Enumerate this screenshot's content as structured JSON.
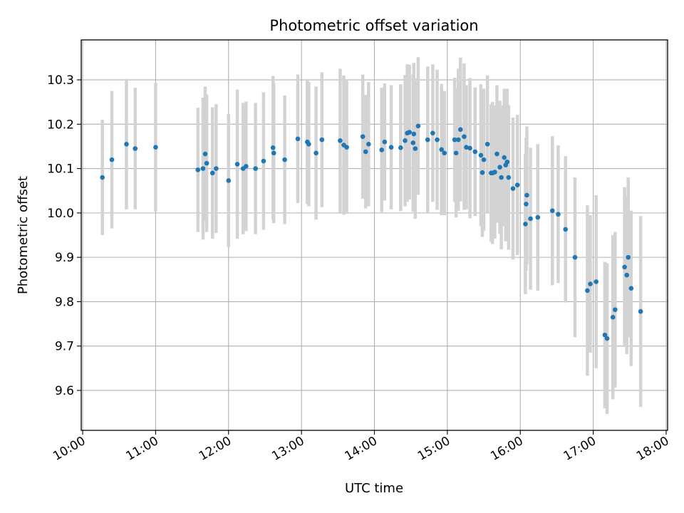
{
  "chart_data": {
    "type": "scatter",
    "title": "Photometric offset variation",
    "xlabel": "UTC time",
    "ylabel": "Photometric offset",
    "x_unit": "hours UTC",
    "xlim": [
      9.98,
      18.02
    ],
    "ylim": [
      9.51,
      10.39
    ],
    "x_ticks": [
      10,
      11,
      12,
      13,
      14,
      15,
      16,
      17,
      18
    ],
    "x_tick_labels": [
      "10:00",
      "11:00",
      "12:00",
      "13:00",
      "14:00",
      "15:00",
      "16:00",
      "17:00",
      "18:00"
    ],
    "y_ticks": [
      9.6,
      9.7,
      9.8,
      9.9,
      10.0,
      10.1,
      10.2,
      10.3
    ],
    "y_tick_labels": [
      "9.6",
      "9.7",
      "9.8",
      "9.9",
      "10.0",
      "10.1",
      "10.2",
      "10.3"
    ],
    "grid": true,
    "colors": {
      "point": "#1f77b4",
      "errorbar": "#d3d3d3",
      "grid": "#b0b0b0"
    },
    "series": [
      {
        "x": [
          10.27,
          10.4,
          10.6,
          10.72,
          11.0,
          11.58,
          11.65,
          11.68,
          11.7,
          11.78,
          11.83,
          12.0,
          12.12,
          12.2,
          12.24,
          12.37,
          12.48,
          12.61,
          12.62,
          12.77,
          12.95,
          13.08,
          13.1,
          13.2,
          13.28,
          13.53,
          13.58,
          13.62,
          13.84,
          13.88,
          13.92,
          14.1,
          14.14,
          14.23,
          14.36,
          14.42,
          14.45,
          14.48,
          14.53,
          14.54,
          14.56,
          14.6,
          14.73,
          14.8,
          14.86,
          14.92,
          14.96,
          15.1,
          15.12,
          15.15,
          15.18,
          15.23,
          15.26,
          15.31,
          15.38,
          15.46,
          15.48,
          15.5,
          15.55,
          15.6,
          15.62,
          15.65,
          15.68,
          15.72,
          15.74,
          15.78,
          15.8,
          15.82,
          15.84,
          15.9,
          15.96,
          16.07,
          16.08,
          16.09,
          16.14,
          16.24,
          16.44,
          16.52,
          16.62,
          16.75,
          16.92,
          16.96,
          17.04,
          17.16,
          17.19,
          17.27,
          17.3,
          17.43,
          17.46,
          17.48,
          17.52,
          17.65
        ],
        "y": [
          10.08,
          10.12,
          10.155,
          10.145,
          10.148,
          10.097,
          10.1,
          10.133,
          10.112,
          10.09,
          10.1,
          10.073,
          10.11,
          10.1,
          10.105,
          10.1,
          10.117,
          10.147,
          10.135,
          10.12,
          10.167,
          10.16,
          10.155,
          10.135,
          10.165,
          10.163,
          10.153,
          10.148,
          10.172,
          10.138,
          10.155,
          10.142,
          10.16,
          10.148,
          10.147,
          10.163,
          10.18,
          10.182,
          10.158,
          10.178,
          10.145,
          10.196,
          10.165,
          10.18,
          10.165,
          10.143,
          10.135,
          10.165,
          10.135,
          10.165,
          10.188,
          10.172,
          10.148,
          10.146,
          10.138,
          10.13,
          10.091,
          10.12,
          10.155,
          10.09,
          10.09,
          10.092,
          10.133,
          10.103,
          10.08,
          10.125,
          10.108,
          10.115,
          10.08,
          10.055,
          10.063,
          9.975,
          10.02,
          10.04,
          9.987,
          9.99,
          10.005,
          9.997,
          9.963,
          9.9,
          9.825,
          9.84,
          9.845,
          9.725,
          9.717,
          9.765,
          9.782,
          9.878,
          9.86,
          9.9,
          9.83,
          9.778
        ],
        "err": [
          0.13,
          0.155,
          0.147,
          0.137,
          0.145,
          0.14,
          0.16,
          0.152,
          0.155,
          0.148,
          0.145,
          0.15,
          0.168,
          0.148,
          0.146,
          0.148,
          0.155,
          0.162,
          0.158,
          0.145,
          0.145,
          0.14,
          0.14,
          0.15,
          0.152,
          0.162,
          0.157,
          0.15,
          0.14,
          0.128,
          0.14,
          0.14,
          0.132,
          0.14,
          0.143,
          0.148,
          0.155,
          0.152,
          0.155,
          0.16,
          0.158,
          0.155,
          0.165,
          0.155,
          0.158,
          0.148,
          0.14,
          0.14,
          0.145,
          0.16,
          0.162,
          0.165,
          0.14,
          0.158,
          0.145,
          0.16,
          0.145,
          0.16,
          0.155,
          0.155,
          0.16,
          0.15,
          0.155,
          0.15,
          0.162,
          0.155,
          0.172,
          0.165,
          0.163,
          0.16,
          0.158,
          0.158,
          0.15,
          0.155,
          0.16,
          0.165,
          0.168,
          0.155,
          0.165,
          0.18,
          0.192,
          0.155,
          0.195,
          0.165,
          0.17,
          0.185,
          0.175,
          0.18,
          0.178,
          0.18,
          0.175,
          0.215
        ]
      }
    ]
  }
}
